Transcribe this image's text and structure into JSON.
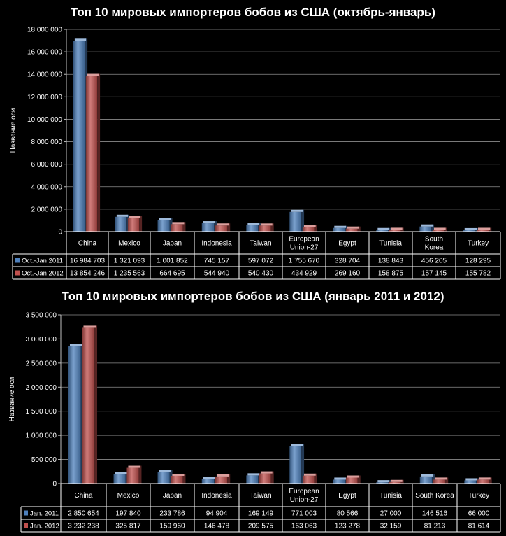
{
  "chart_data": [
    {
      "type": "bar",
      "title": "Топ 10 мировых импортеров бобов из США (октябрь-январь)",
      "xlabel": "",
      "ylabel": "Название оси",
      "ylim": [
        0,
        18000000
      ],
      "ytick_values": [
        0,
        2000000,
        4000000,
        6000000,
        8000000,
        10000000,
        12000000,
        14000000,
        16000000,
        18000000
      ],
      "ytick_labels": [
        "0",
        "2 000 000",
        "4 000 000",
        "6 000 000",
        "8 000 000",
        "10 000 000",
        "12 000 000",
        "14 000 000",
        "16 000 000",
        "18 000 000"
      ],
      "grid": true,
      "legend": "data-table",
      "categories": [
        "China",
        "Mexico",
        "Japan",
        "Indonesia",
        "Taiwan",
        "European Union-27",
        "Egypt",
        "Tunisia",
        "South Korea",
        "Turkey"
      ],
      "category_lines": [
        [
          "China"
        ],
        [
          "Mexico"
        ],
        [
          "Japan"
        ],
        [
          "Indonesia"
        ],
        [
          "Taiwan"
        ],
        [
          "European",
          "Union-27"
        ],
        [
          "Egypt"
        ],
        [
          "Tunisia"
        ],
        [
          "South",
          "Korea"
        ],
        [
          "Turkey"
        ]
      ],
      "series": [
        {
          "name": "Oct.-Jan 2011",
          "color": "#4f81bd",
          "values": [
            16984703,
            1321093,
            1001852,
            745157,
            597072,
            1755670,
            328704,
            138843,
            456205,
            128295
          ],
          "labels": [
            "16 984 703",
            "1 321 093",
            "1 001 852",
            "745 157",
            "597 072",
            "1 755 670",
            "328 704",
            "138 843",
            "456 205",
            "128 295"
          ]
        },
        {
          "name": "Oct.-Jan 2012",
          "color": "#c0504d",
          "values": [
            13854246,
            1235563,
            664695,
            544940,
            540430,
            434929,
            269160,
            158875,
            157145,
            155782
          ],
          "labels": [
            "13 854 246",
            "1 235 563",
            "664 695",
            "544 940",
            "540 430",
            "434 929",
            "269 160",
            "158 875",
            "157 145",
            "155 782"
          ]
        }
      ]
    },
    {
      "type": "bar",
      "title": "Топ 10 мировых импортеров бобов из США (январь 2011 и 2012)",
      "xlabel": "",
      "ylabel": "Название оси",
      "ylim": [
        0,
        3500000
      ],
      "ytick_values": [
        0,
        500000,
        1000000,
        1500000,
        2000000,
        2500000,
        3000000,
        3500000
      ],
      "ytick_labels": [
        "0",
        "500 000",
        "1 000 000",
        "1 500 000",
        "2 000 000",
        "2 500 000",
        "3 000 000",
        "3 500 000"
      ],
      "grid": true,
      "legend": "data-table",
      "categories": [
        "China",
        "Mexico",
        "Japan",
        "Indonesia",
        "Taiwan",
        "European Union-27",
        "Egypt",
        "Tunisia",
        "South Korea",
        "Turkey"
      ],
      "category_lines": [
        [
          "China"
        ],
        [
          "Mexico"
        ],
        [
          "Japan"
        ],
        [
          "Indonesia"
        ],
        [
          "Taiwan"
        ],
        [
          "European",
          "Union-27"
        ],
        [
          "Egypt"
        ],
        [
          "Tunisia"
        ],
        [
          "South Korea"
        ],
        [
          "Turkey"
        ]
      ],
      "series": [
        {
          "name": "Jan. 2011",
          "color": "#4f81bd",
          "values": [
            2850654,
            197840,
            233786,
            94904,
            169149,
            771003,
            80566,
            27000,
            146516,
            66000
          ],
          "labels": [
            "2 850 654",
            "197 840",
            "233 786",
            "94 904",
            "169 149",
            "771 003",
            "80 566",
            "27 000",
            "146 516",
            "66 000"
          ]
        },
        {
          "name": "Jan. 2012",
          "color": "#c0504d",
          "values": [
            3232238,
            325817,
            159960,
            146478,
            209575,
            163063,
            123278,
            32159,
            81213,
            81614
          ],
          "labels": [
            "3 232 238",
            "325 817",
            "159 960",
            "146 478",
            "209 575",
            "163 063",
            "123 278",
            "32 159",
            "81 213",
            "81 614"
          ]
        }
      ]
    }
  ]
}
